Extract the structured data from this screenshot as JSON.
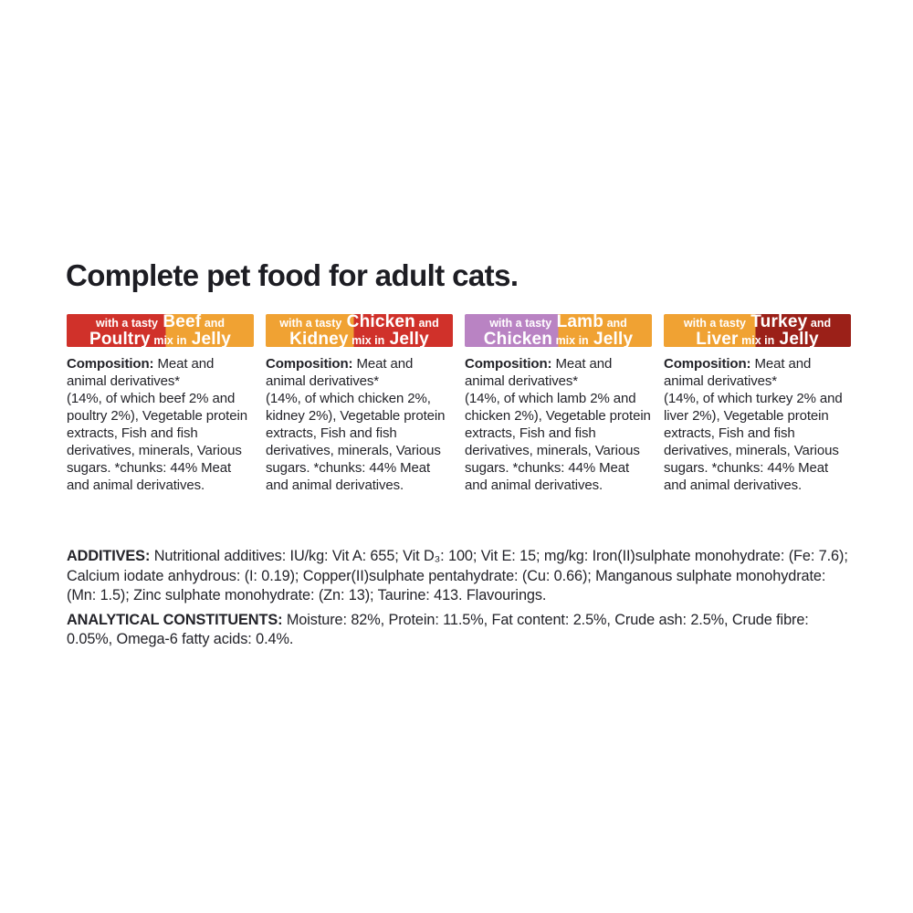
{
  "title": "Complete pet food for adult cats.",
  "colors": {
    "red": "#d0312a",
    "orange": "#f0a233",
    "purple": "#b983c3",
    "dark_red": "#9b2018",
    "banner_text": "#ffffff",
    "body_text": "#232329"
  },
  "products": [
    {
      "banner": {
        "prefix": "with a tasty",
        "protein1": "Beef",
        "conj": "and",
        "protein2": "Poultry",
        "mix_in": "mix in",
        "jelly": "Jelly",
        "left_color": "#d0312a",
        "right_color": "#f0a233",
        "split_percent": 53
      },
      "composition_label": "Composition:",
      "composition": "Meat and animal derivatives*\n(14%, of which beef 2% and poultry 2%), Vegetable protein extracts, Fish and fish derivatives, minerals, Various sugars. *chunks: 44% Meat and animal derivatives."
    },
    {
      "banner": {
        "prefix": "with a tasty",
        "protein1": "Chicken",
        "conj": "and",
        "protein2": "Kidney",
        "mix_in": "mix in",
        "jelly": "Jelly",
        "left_color": "#f0a233",
        "right_color": "#d0312a",
        "split_percent": 47
      },
      "composition_label": "Composition:",
      "composition": "Meat and animal derivatives*\n(14%, of which chicken 2%, kidney 2%), Vegetable protein extracts, Fish and fish derivatives, minerals, Various sugars. *chunks: 44% Meat and animal derivatives."
    },
    {
      "banner": {
        "prefix": "with a tasty",
        "protein1": "Lamb",
        "conj": "and",
        "protein2": "Chicken",
        "mix_in": "mix in",
        "jelly": "Jelly",
        "left_color": "#b983c3",
        "right_color": "#f0a233",
        "split_percent": 50
      },
      "composition_label": "Composition:",
      "composition": "Meat and animal derivatives*\n(14%, of which lamb 2% and chicken 2%), Vegetable protein extracts, Fish and fish derivatives, minerals, Various sugars. *chunks: 44% Meat and animal derivatives."
    },
    {
      "banner": {
        "prefix": "with a tasty",
        "protein1": "Turkey",
        "conj": "and",
        "protein2": "Liver",
        "mix_in": "mix in",
        "jelly": "Jelly",
        "left_color": "#f0a233",
        "right_color": "#9b2018",
        "split_percent": 49
      },
      "composition_label": "Composition:",
      "composition": "Meat and animal derivatives*\n(14%, of which turkey 2% and liver 2%), Vegetable protein extracts, Fish and fish derivatives, minerals, Various sugars. *chunks: 44% Meat and animal derivatives."
    }
  ],
  "additives": {
    "label": "ADDITIVES:",
    "text": "Nutritional additives: IU/kg: Vit A: 655; Vit D₃: 100; Vit E: 15; mg/kg: Iron(II)sulphate monohydrate: (Fe: 7.6); Calcium iodate anhydrous: (I: 0.19); Copper(II)sulphate pentahydrate: (Cu: 0.66); Manganous sulphate monohydrate: (Mn: 1.5); Zinc sulphate monohydrate: (Zn: 13); Taurine: 413. Flavourings."
  },
  "analytical": {
    "label": "ANALYTICAL CONSTITUENTS:",
    "text": "Moisture: 82%, Protein: 11.5%, Fat content: 2.5%, Crude ash: 2.5%, Crude fibre: 0.05%, Omega-6 fatty acids: 0.4%."
  }
}
